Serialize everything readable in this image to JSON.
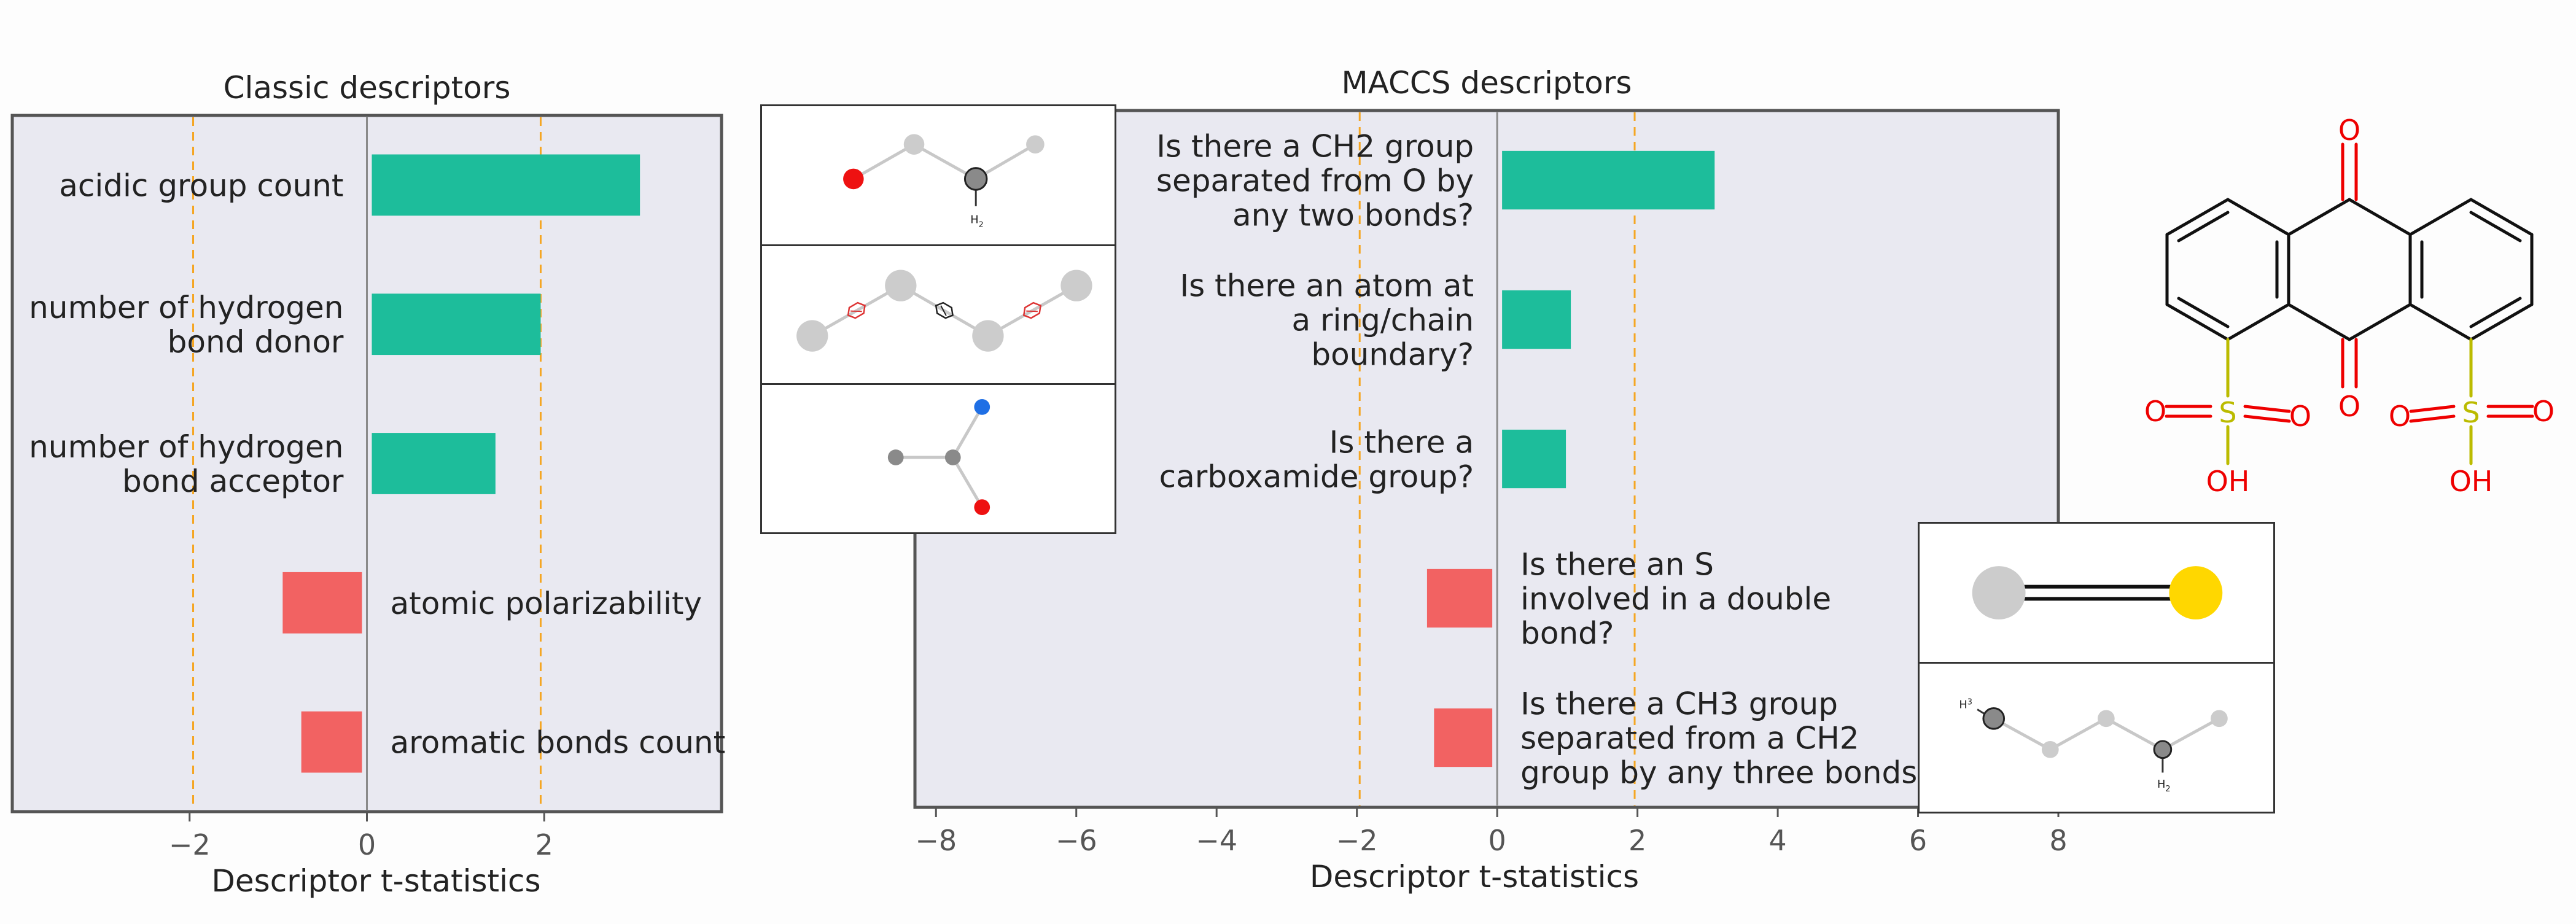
{
  "chart_data": [
    {
      "type": "bar",
      "orientation": "horizontal",
      "title": "Classic descriptors",
      "xlabel": "Descriptor t-statistics",
      "xlim": [
        -4,
        4
      ],
      "xticks": [
        -2,
        0,
        2
      ],
      "xtick_labels": [
        "−2",
        "0",
        "2"
      ],
      "reference_lines": [
        -1.96,
        1.96
      ],
      "categories": [
        "acidic group count",
        "number of hydrogen bond donor",
        "number of hydrogen bond acceptor",
        "atomic polarizability",
        "aromatic bonds count"
      ],
      "category_lines": [
        [
          "acidic group count"
        ],
        [
          "number of hydrogen",
          "bond donor"
        ],
        [
          "number of hydrogen",
          "bond acceptor"
        ],
        [
          "atomic polarizability"
        ],
        [
          "aromatic bonds count"
        ]
      ],
      "values": [
        3.08,
        1.96,
        1.45,
        -0.95,
        -0.74
      ]
    },
    {
      "type": "bar",
      "orientation": "horizontal",
      "title": "MACCS descriptors",
      "xlabel": "Descriptor t-statistics",
      "xlim": [
        -8.3,
        8.0
      ],
      "xticks": [
        -8,
        -6,
        -4,
        -2,
        0,
        2,
        4,
        6,
        8
      ],
      "xtick_labels": [
        "−8",
        "−6",
        "−4",
        "−2",
        "0",
        "2",
        "4",
        "6",
        "8"
      ],
      "reference_lines": [
        -1.96,
        1.96
      ],
      "categories": [
        "Is there a CH2 group separated from O by any two bonds?",
        "Is there an atom at a ring/chain boundary?",
        "Is there a carboxamide group?",
        "Is there an S involved in a double bond?",
        "Is there a CH3 group separated from a CH2 group by any three bonds?"
      ],
      "category_lines": [
        [
          "Is there a CH2 group",
          "separated from O by",
          "any two bonds?"
        ],
        [
          "Is there an atom at",
          "a ring/chain",
          "boundary?"
        ],
        [
          "Is there a",
          "carboxamide group?"
        ],
        [
          "Is there an S",
          "involved in a double",
          "bond?"
        ],
        [
          "Is there a CH3 group",
          "separated from a CH2",
          "group by any three bonds?"
        ]
      ],
      "values": [
        3.1,
        1.05,
        0.98,
        -1.0,
        -0.9
      ]
    }
  ],
  "colors": {
    "positive": "#1dbd9b",
    "negative": "#f26262",
    "axes_bg": "#e9e9f1",
    "ref_line": "#f5a623"
  },
  "molecule": {
    "name": "anthraquinone-1,8-disulfonic acid",
    "labels": {
      "oxygen": "O",
      "sulfur": "S",
      "hydroxyl": "OH"
    }
  },
  "fragment_labels": {
    "ch2": "H",
    "subscript": "2",
    "ch3": "H",
    "ch3_subscript": "3"
  }
}
